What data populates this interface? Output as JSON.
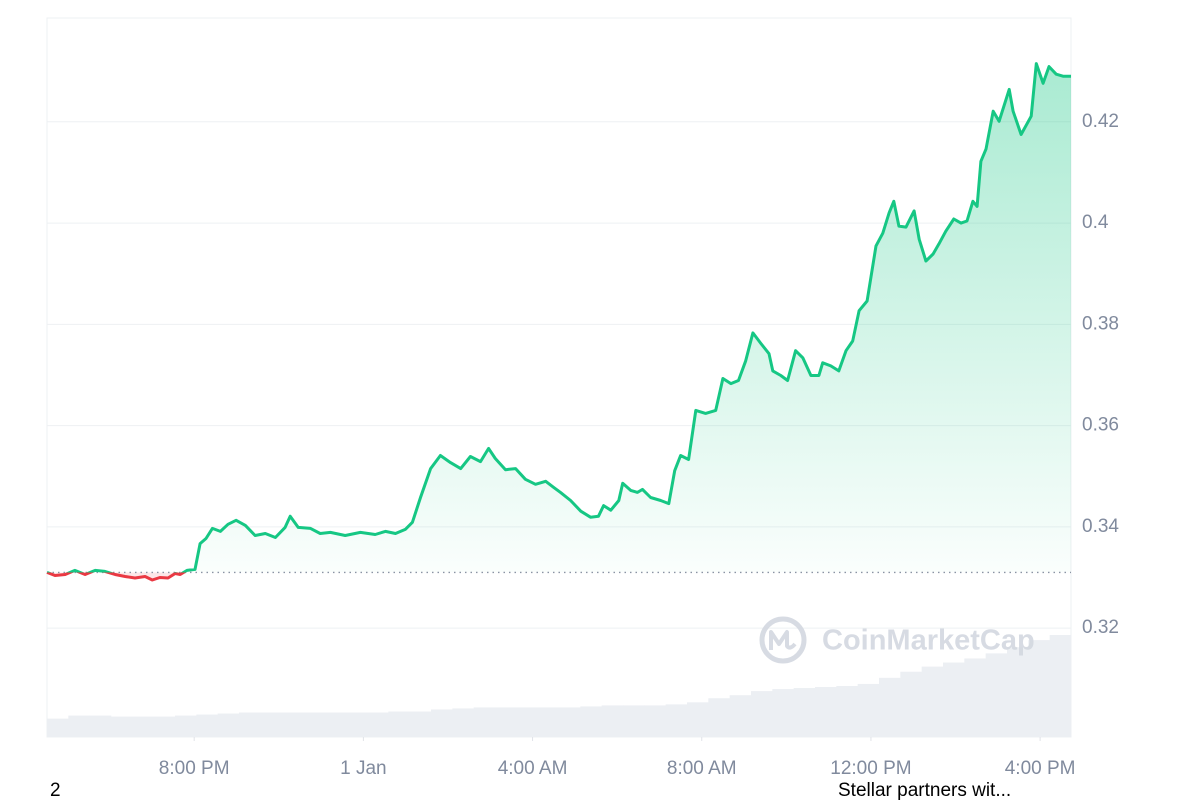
{
  "chart_data": {
    "type": "line",
    "x": [
      16.52,
      16.71,
      16.95,
      17.18,
      17.42,
      17.66,
      17.89,
      18.13,
      18.37,
      18.6,
      18.84,
      19.01,
      19.19,
      19.38,
      19.55,
      19.67,
      19.83,
      20.02,
      20.14,
      20.28,
      20.43,
      20.62,
      20.8,
      20.99,
      21.21,
      21.44,
      21.68,
      21.92,
      22.15,
      22.27,
      22.46,
      22.75,
      22.98,
      23.22,
      23.57,
      23.93,
      24.28,
      24.52,
      24.76,
      24.99,
      25.16,
      25.35,
      25.59,
      25.82,
      26.06,
      26.3,
      26.53,
      26.77,
      26.96,
      27.12,
      27.36,
      27.6,
      27.83,
      28.07,
      28.31,
      28.5,
      28.66,
      28.9,
      29.14,
      29.37,
      29.56,
      29.68,
      29.85,
      30.04,
      30.13,
      30.32,
      30.48,
      30.6,
      30.79,
      31.03,
      31.22,
      31.36,
      31.5,
      31.69,
      31.86,
      32.09,
      32.33,
      32.5,
      32.69,
      32.87,
      33.04,
      33.21,
      33.4,
      33.59,
      33.68,
      33.87,
      34.03,
      34.22,
      34.39,
      34.58,
      34.77,
      34.86,
      35.05,
      35.24,
      35.41,
      35.57,
      35.72,
      35.91,
      36.12,
      36.28,
      36.43,
      36.54,
      36.66,
      36.83,
      37.02,
      37.14,
      37.3,
      37.47,
      37.61,
      37.77,
      37.96,
      38.13,
      38.27,
      38.41,
      38.51,
      38.6,
      38.72,
      38.89,
      39.03,
      39.27,
      39.36,
      39.55,
      39.79,
      39.91,
      40.07,
      40.21,
      40.38,
      40.54,
      40.73
    ],
    "series": [
      {
        "color": "#16c784",
        "down_color": "#ea3943",
        "values": [
          0.331,
          0.3304,
          0.3306,
          0.3314,
          0.3306,
          0.3314,
          0.3312,
          0.3306,
          0.3302,
          0.3299,
          0.3302,
          0.3295,
          0.33,
          0.3299,
          0.3308,
          0.3306,
          0.3314,
          0.3316,
          0.3367,
          0.3377,
          0.3397,
          0.3391,
          0.3405,
          0.3413,
          0.3403,
          0.3383,
          0.3387,
          0.3379,
          0.3399,
          0.3421,
          0.3399,
          0.3397,
          0.3387,
          0.3389,
          0.3383,
          0.3389,
          0.3385,
          0.3391,
          0.3387,
          0.3395,
          0.3409,
          0.3458,
          0.3515,
          0.3541,
          0.3527,
          0.3515,
          0.3539,
          0.3529,
          0.3555,
          0.3535,
          0.3513,
          0.3515,
          0.3494,
          0.3484,
          0.349,
          0.3478,
          0.3468,
          0.3452,
          0.3431,
          0.3419,
          0.3421,
          0.3442,
          0.3433,
          0.3452,
          0.3486,
          0.3472,
          0.3468,
          0.3474,
          0.3458,
          0.3452,
          0.3446,
          0.3511,
          0.3541,
          0.3533,
          0.363,
          0.3624,
          0.363,
          0.3693,
          0.3683,
          0.3689,
          0.3728,
          0.3783,
          0.3762,
          0.3742,
          0.3708,
          0.3699,
          0.3689,
          0.3748,
          0.3734,
          0.3699,
          0.3699,
          0.3724,
          0.3718,
          0.3708,
          0.3748,
          0.3767,
          0.3827,
          0.3846,
          0.3955,
          0.398,
          0.402,
          0.4043,
          0.3994,
          0.3992,
          0.4024,
          0.3968,
          0.3925,
          0.3939,
          0.3959,
          0.3984,
          0.4008,
          0.4,
          0.4004,
          0.4043,
          0.4033,
          0.4122,
          0.4146,
          0.4221,
          0.4201,
          0.4264,
          0.4221,
          0.4175,
          0.4211,
          0.4315,
          0.4276,
          0.4309,
          0.4294,
          0.429,
          0.429
        ]
      }
    ],
    "baseline": 0.331,
    "xlim": [
      16.52,
      40.73
    ],
    "xticks": [
      {
        "value": 20,
        "label": "8:00 PM"
      },
      {
        "value": 24,
        "label": "1 Jan"
      },
      {
        "value": 28,
        "label": "4:00 AM"
      },
      {
        "value": 32,
        "label": "8:00 AM"
      },
      {
        "value": 36,
        "label": "12:00 PM"
      },
      {
        "value": 40,
        "label": "4:00 PM"
      }
    ],
    "ylim": [
      0.2985,
      0.4405
    ],
    "yticks": [
      0.32,
      0.34,
      0.36,
      0.38,
      0.4,
      0.42
    ],
    "grid": true,
    "volume": {
      "color": "#eceff3",
      "lim": [
        0,
        100
      ],
      "values": [
        18,
        21,
        21,
        20,
        20,
        20,
        21,
        22,
        23,
        24,
        24,
        24,
        24,
        24,
        24,
        24,
        25,
        25,
        27,
        28,
        29,
        29,
        29,
        29,
        29,
        30,
        31,
        31,
        31,
        32,
        34,
        38,
        41,
        45,
        47,
        48,
        49,
        50,
        52,
        58,
        64,
        69,
        73,
        77,
        82,
        88,
        95,
        100
      ]
    },
    "watermark": "CoinMarketCap"
  },
  "footer": {
    "left": "2",
    "right": "Stellar partners wit..."
  }
}
